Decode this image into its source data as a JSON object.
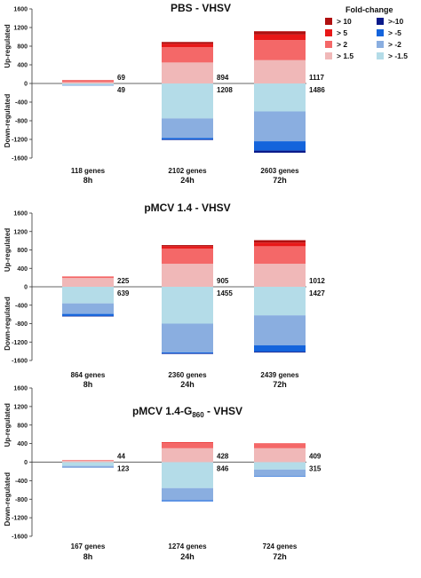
{
  "legend": {
    "title": "Fold-change",
    "up": [
      {
        "label": "> 10",
        "color": "#b01010"
      },
      {
        "label": "> 5",
        "color": "#e81818"
      },
      {
        "label": "> 2",
        "color": "#f46868"
      },
      {
        "label": "> 1.5",
        "color": "#f0b8b8"
      }
    ],
    "down": [
      {
        "label": ">-10",
        "color": "#0a1a8a"
      },
      {
        "label": "> -5",
        "color": "#1464dc"
      },
      {
        "label": "> -2",
        "color": "#8aaee0"
      },
      {
        "label": "> -1.5",
        "color": "#b4dce8"
      }
    ]
  },
  "chart_data": [
    {
      "type": "bar",
      "title": "PBS - VHSV",
      "ylabel_up": "Up-regulated",
      "ylabel_down": "Down-regulated",
      "ylim": [
        -1600,
        1600
      ],
      "yticks": [
        1600,
        1200,
        800,
        400,
        0,
        -400,
        -800,
        -1200,
        -1600
      ],
      "categories": [
        "8h",
        "24h",
        "72h"
      ],
      "genes": [
        "118 genes",
        "2102 genes",
        "2603 genes"
      ],
      "up_totals": [
        "69",
        "894",
        "1117"
      ],
      "down_totals": [
        "49",
        "1208",
        "1486"
      ],
      "up_series": [
        {
          "name": "> 1.5",
          "values": [
            30,
            450,
            500
          ]
        },
        {
          "name": "> 2",
          "values": [
            35,
            330,
            430
          ]
        },
        {
          "name": "> 5",
          "values": [
            4,
            70,
            120
          ]
        },
        {
          "name": "> 10",
          "values": [
            0,
            40,
            70
          ]
        }
      ],
      "down_series": [
        {
          "name": "> -1.5",
          "values": [
            30,
            750,
            600
          ]
        },
        {
          "name": "> -2",
          "values": [
            19,
            420,
            640
          ]
        },
        {
          "name": "> -5",
          "values": [
            0,
            35,
            200
          ]
        },
        {
          "name": ">-10",
          "values": [
            0,
            3,
            46
          ]
        }
      ]
    },
    {
      "type": "bar",
      "title": "pMCV 1.4 - VHSV",
      "ylabel_up": "Up-regulated",
      "ylabel_down": "Down-regulated",
      "ylim": [
        -1600,
        1600
      ],
      "yticks": [
        1600,
        1200,
        800,
        400,
        0,
        -400,
        -800,
        -1200,
        -1600
      ],
      "categories": [
        "8h",
        "24h",
        "72h"
      ],
      "genes": [
        "864 genes",
        "2360 genes",
        "2439 genes"
      ],
      "up_totals": [
        "225",
        "905",
        "1012"
      ],
      "down_totals": [
        "639",
        "1455",
        "1427"
      ],
      "up_series": [
        {
          "name": "> 1.5",
          "values": [
            190,
            500,
            500
          ]
        },
        {
          "name": "> 2",
          "values": [
            35,
            330,
            380
          ]
        },
        {
          "name": "> 5",
          "values": [
            0,
            50,
            80
          ]
        },
        {
          "name": "> 10",
          "values": [
            0,
            25,
            52
          ]
        }
      ],
      "down_series": [
        {
          "name": "> -1.5",
          "values": [
            360,
            800,
            620
          ]
        },
        {
          "name": "> -2",
          "values": [
            230,
            625,
            650
          ]
        },
        {
          "name": "> -5",
          "values": [
            45,
            25,
            140
          ]
        },
        {
          "name": ">-10",
          "values": [
            4,
            5,
            17
          ]
        }
      ]
    },
    {
      "type": "bar",
      "title": "pMCV 1.4-G",
      "title_sub": "860",
      "title_tail": " - VHSV",
      "ylabel_up": "Up-regulated",
      "ylabel_down": "Down-regulated",
      "ylim": [
        -1600,
        1600
      ],
      "yticks": [
        1600,
        1200,
        800,
        400,
        0,
        -400,
        -800,
        -1200,
        -1600
      ],
      "categories": [
        "8h",
        "24h",
        "72h"
      ],
      "genes": [
        "167 genes",
        "1274 genes",
        "724 genes"
      ],
      "up_totals": [
        "44",
        "428",
        "409"
      ],
      "down_totals": [
        "123",
        "846",
        "315"
      ],
      "up_series": [
        {
          "name": "> 1.5",
          "values": [
            30,
            300,
            300
          ]
        },
        {
          "name": "> 2",
          "values": [
            14,
            110,
            109
          ]
        },
        {
          "name": "> 5",
          "values": [
            0,
            18,
            0
          ]
        },
        {
          "name": "> 10",
          "values": [
            0,
            0,
            0
          ]
        }
      ],
      "down_series": [
        {
          "name": "> -1.5",
          "values": [
            80,
            560,
            160
          ]
        },
        {
          "name": "> -2",
          "values": [
            43,
            265,
            145
          ]
        },
        {
          "name": "> -5",
          "values": [
            0,
            21,
            10
          ]
        },
        {
          "name": ">-10",
          "values": [
            0,
            0,
            0
          ]
        }
      ]
    }
  ]
}
